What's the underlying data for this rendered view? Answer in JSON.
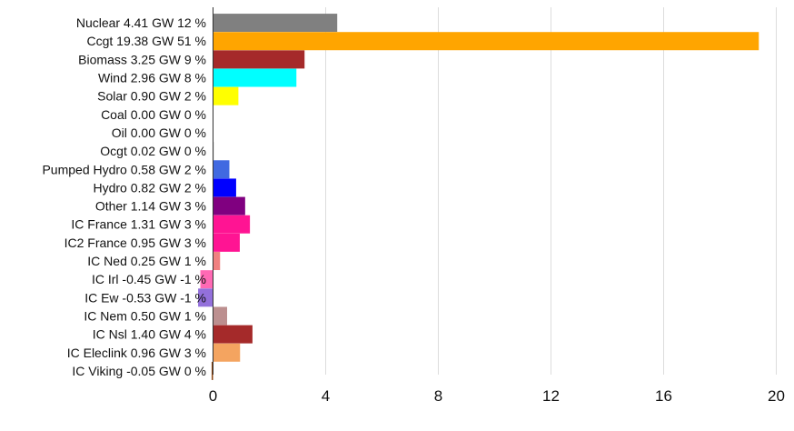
{
  "chart_data": {
    "type": "bar",
    "orientation": "horizontal",
    "categories": [
      "Nuclear 4.41 GW 12 %",
      "Ccgt 19.38 GW 51 %",
      "Biomass 3.25 GW 9 %",
      "Wind 2.96 GW 8 %",
      "Solar 0.90 GW 2 %",
      "Coal 0.00 GW 0 %",
      "Oil 0.00 GW 0 %",
      "Ocgt 0.02 GW 0 %",
      "Pumped Hydro 0.58 GW 2 %",
      "Hydro 0.82 GW 2 %",
      "Other 1.14 GW 3 %",
      "IC France 1.31 GW 3 %",
      "IC2 France 0.95 GW 3 %",
      "IC Ned 0.25 GW 1 %",
      "IC Irl -0.45 GW -1 %",
      "IC Ew -0.53 GW -1 %",
      "IC Nem 0.50 GW 1 %",
      "IC Nsl 1.40 GW 4 %",
      "IC Eleclink 0.96 GW 3 %",
      "IC Viking -0.05 GW 0 %"
    ],
    "values": [
      4.41,
      19.38,
      3.25,
      2.96,
      0.9,
      0.0,
      0.0,
      0.02,
      0.58,
      0.82,
      1.14,
      1.31,
      0.95,
      0.25,
      -0.45,
      -0.53,
      0.5,
      1.4,
      0.96,
      -0.05
    ],
    "colors": [
      "#808080",
      "#ffa500",
      "#a52a2a",
      "#00ffff",
      "#ffff00",
      "#000000",
      "#333333",
      "#555555",
      "#4169e1",
      "#0000ff",
      "#800080",
      "#ff1493",
      "#ff1493",
      "#f08080",
      "#ff69b4",
      "#9370db",
      "#bc8f8f",
      "#a52a2a",
      "#f4a460",
      "#8b4513"
    ],
    "x_ticks": [
      0,
      4,
      8,
      12,
      16,
      20
    ],
    "xlim": [
      -0.53,
      20
    ],
    "grid": true
  }
}
